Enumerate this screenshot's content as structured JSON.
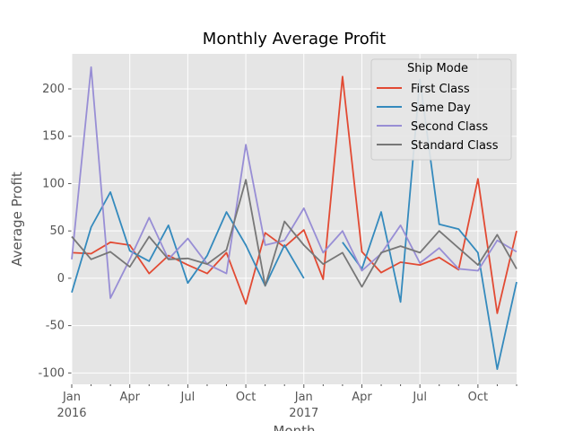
{
  "chart_data": {
    "type": "line",
    "title": "Monthly Average Profit",
    "xlabel": "Month",
    "ylabel": "Average Profit",
    "ylim": [
      -112,
      237
    ],
    "yticks": [
      -100,
      -50,
      0,
      50,
      100,
      150,
      200
    ],
    "x_start": "2016-01",
    "x_end": "2017-12",
    "x_tick_labels": [
      {
        "month": "2016-01",
        "label": "Jan",
        "year": "2016"
      },
      {
        "month": "2016-04",
        "label": "Apr"
      },
      {
        "month": "2016-07",
        "label": "Jul"
      },
      {
        "month": "2016-10",
        "label": "Oct"
      },
      {
        "month": "2017-01",
        "label": "Jan",
        "year": "2017"
      },
      {
        "month": "2017-04",
        "label": "Apr"
      },
      {
        "month": "2017-07",
        "label": "Jul"
      },
      {
        "month": "2017-10",
        "label": "Oct"
      }
    ],
    "x": [
      "2016-01",
      "2016-02",
      "2016-03",
      "2016-04",
      "2016-05",
      "2016-06",
      "2016-07",
      "2016-08",
      "2016-09",
      "2016-10",
      "2016-11",
      "2016-12",
      "2017-01",
      "2017-02",
      "2017-03",
      "2017-04",
      "2017-05",
      "2017-06",
      "2017-07",
      "2017-08",
      "2017-09",
      "2017-10",
      "2017-11",
      "2017-12"
    ],
    "grid": true,
    "legend": {
      "title": "Ship Mode",
      "position": "top-right"
    },
    "series": [
      {
        "name": "First Class",
        "color": "#e24a33",
        "values": [
          27,
          26,
          38,
          35,
          5,
          24,
          14,
          5,
          27,
          -27,
          48,
          33,
          51,
          -1,
          213,
          28,
          6,
          17,
          14,
          22,
          9,
          105,
          -37,
          50
        ]
      },
      {
        "name": "Same Day",
        "color": "#348abd",
        "values": [
          -15,
          54,
          91,
          29,
          18,
          56,
          -5,
          24,
          70,
          35,
          -8,
          35,
          0,
          null,
          38,
          10,
          70,
          -25,
          210,
          57,
          52,
          27,
          -96,
          -4
        ]
      },
      {
        "name": "Second Class",
        "color": "#988ed5",
        "values": [
          20,
          223,
          -21,
          20,
          64,
          20,
          42,
          15,
          5,
          141,
          35,
          40,
          74,
          27,
          50,
          8,
          26,
          56,
          16,
          32,
          10,
          8,
          40,
          28
        ]
      },
      {
        "name": "Standard Class",
        "color": "#777777",
        "values": [
          44,
          20,
          28,
          12,
          44,
          20,
          21,
          15,
          30,
          104,
          -8,
          60,
          35,
          15,
          27,
          -9,
          27,
          34,
          27,
          50,
          32,
          14,
          46,
          10
        ]
      }
    ]
  }
}
